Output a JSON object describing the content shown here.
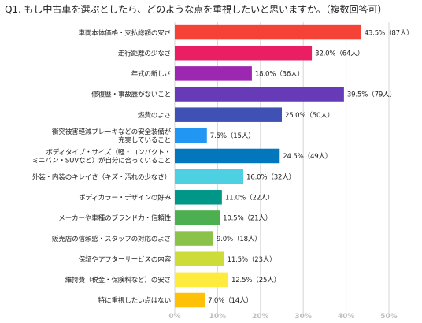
{
  "chart_data": {
    "type": "bar",
    "orientation": "horizontal",
    "title": "Q1. もし中古車を選ぶとしたら、どのような点を重視したいと思いますか。（複数回答可）",
    "xlim": [
      0,
      50
    ],
    "x_ticks": [
      "0%",
      "10%",
      "20%",
      "30%",
      "40%",
      "50%"
    ],
    "grid": true,
    "categories": [
      [
        "車両本体価格・支払総額の安さ"
      ],
      [
        "走行距離の少なさ"
      ],
      [
        "年式の新しさ"
      ],
      [
        "修復歴・事故歴がないこと"
      ],
      [
        "燃費のよさ"
      ],
      [
        "衝突被害軽減ブレーキなどの安全装備が",
        "充実していること"
      ],
      [
        "ボディタイプ・サイズ（軽・コンパクト・",
        "ミニバン・SUVなど）が自分に合っていること"
      ],
      [
        "外装・内装のキレイさ（キズ・汚れの少なさ）"
      ],
      [
        "ボディカラー・デザインの好み"
      ],
      [
        "メーカーや車種のブランド力・信頼性"
      ],
      [
        "販売店の信頼感・スタッフの対応のよさ"
      ],
      [
        "保証やアフターサービスの内容"
      ],
      [
        "維持費（税金・保険料など）の安さ"
      ],
      [
        "特に重視したい点はない"
      ]
    ],
    "values": [
      43.5,
      32.0,
      18.0,
      39.5,
      25.0,
      7.5,
      24.5,
      16.0,
      11.0,
      10.5,
      9.0,
      11.5,
      12.5,
      7.0
    ],
    "data_labels": [
      "43.5%（87人）",
      "32.0%（64人）",
      "18.0%（36人）",
      "39.5%（79人）",
      "25.0%（50人）",
      "7.5%（15人）",
      "24.5%（49人）",
      "16.0%（32人）",
      "11.0%（22人）",
      "10.5%（21人）",
      "9.0%（18人）",
      "11.5%（23人）",
      "12.5%（25人）",
      "7.0%（14人）"
    ],
    "colors": [
      "#f44336",
      "#e91e63",
      "#9c27b0",
      "#673ab7",
      "#3f51b5",
      "#2196f3",
      "#0277bd",
      "#4dd0e1",
      "#009688",
      "#4caf50",
      "#8bc34a",
      "#cddc39",
      "#ffeb3b",
      "#ffc107"
    ],
    "grid_color": "#d6d6d6",
    "tick_color": "#bdbdbd"
  }
}
